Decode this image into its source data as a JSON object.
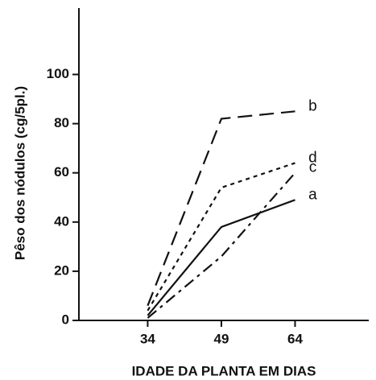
{
  "chart_data": {
    "type": "line",
    "x_label": "IDADE DA PLANTA EM DIAS",
    "y_label": "Pêso dos nódulos (cg/5pl.)",
    "x": [
      34,
      49,
      64
    ],
    "xlim": [
      20,
      79
    ],
    "xticks": [
      34,
      49,
      64
    ],
    "ylim": [
      0,
      127
    ],
    "yticks": [
      0,
      20,
      40,
      60,
      80,
      100
    ],
    "series": [
      {
        "name": "b",
        "color": "#111111",
        "dash": "dashed",
        "values": [
          6,
          82,
          85
        ]
      },
      {
        "name": "d",
        "color": "#111111",
        "dash": "dotted",
        "values": [
          4,
          54,
          64
        ]
      },
      {
        "name": "c",
        "color": "#111111",
        "dash": "dashdot",
        "values": [
          1,
          26,
          60
        ]
      },
      {
        "name": "a",
        "color": "#111111",
        "dash": "solid",
        "values": [
          2,
          38,
          49
        ]
      }
    ]
  }
}
